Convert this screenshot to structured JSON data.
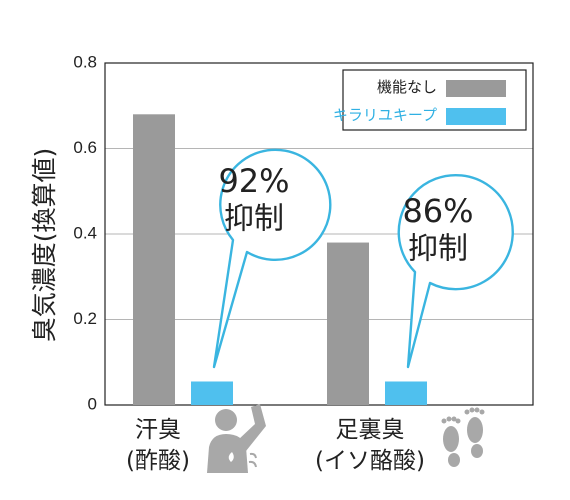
{
  "chart_data": {
    "type": "bar",
    "ylabel": "臭気濃度(換算値)",
    "ylim": [
      0,
      0.8
    ],
    "yticks": [
      "0",
      "0.2",
      "0.4",
      "0.6",
      "0.8"
    ],
    "grid": true,
    "legend_position": "top-right",
    "categories": [
      {
        "line1": "汗臭",
        "line2": "(酢酸)"
      },
      {
        "line1": "足裏臭",
        "line2": "(イソ酪酸)"
      }
    ],
    "series": [
      {
        "name": "機能なし",
        "color": "#9a9a9a",
        "values": [
          0.68,
          0.38
        ]
      },
      {
        "name": "キラリユキープ",
        "color": "#4fc0ee",
        "values": [
          0.055,
          0.055
        ]
      }
    ],
    "annotations": [
      {
        "percent": "92%",
        "text": "抑制",
        "category_index": 0
      },
      {
        "percent": "86%",
        "text": "抑制",
        "category_index": 1
      }
    ],
    "icons": [
      "sweating-person-icon",
      "footprints-icon"
    ],
    "accent_colors": {
      "bubble_border": "#3ab5e0",
      "legend_text": "#2fb0e3"
    }
  }
}
